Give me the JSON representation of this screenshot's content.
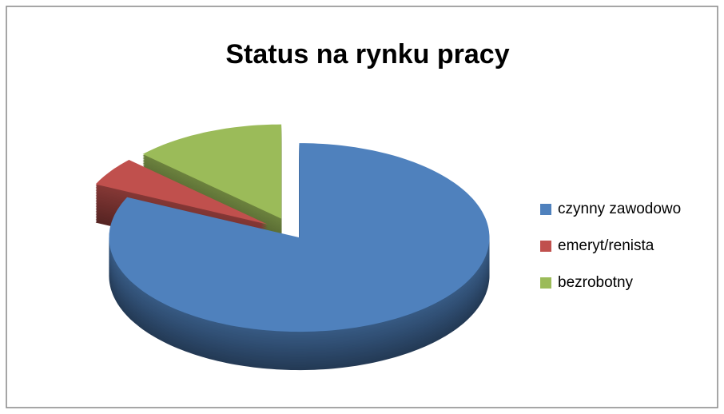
{
  "chart_data": {
    "type": "pie",
    "title": "Status na rynku pracy",
    "categories": [
      "czynny zawodowo",
      "emeryt/renista",
      "bezrobotny"
    ],
    "values": [
      82,
      5,
      13
    ],
    "colors": [
      "#4f81bd",
      "#c0504d",
      "#9bbb59"
    ],
    "legend": "right"
  }
}
